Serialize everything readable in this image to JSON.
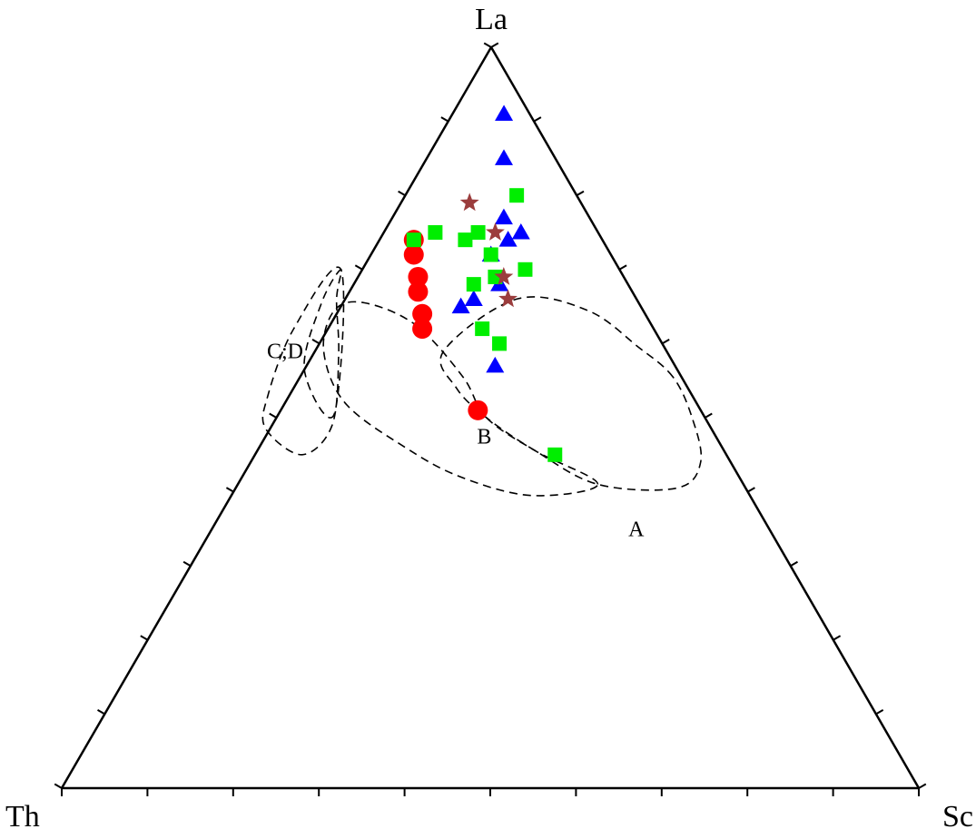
{
  "chart_data": {
    "type": "scatter",
    "subtype": "ternary",
    "vertices": {
      "top": "La",
      "left": "Th",
      "right": "Sc"
    },
    "tick_step": 0.1,
    "fields": [
      {
        "label": "A",
        "outline": [
          [
            0.555,
            0.01,
            0.435
          ],
          [
            0.595,
            0.03,
            0.375
          ],
          [
            0.645,
            0.065,
            0.29
          ],
          [
            0.66,
            0.14,
            0.2
          ],
          [
            0.59,
            0.26,
            0.15
          ],
          [
            0.54,
            0.27,
            0.19
          ],
          [
            0.5,
            0.255,
            0.245
          ],
          [
            0.455,
            0.22,
            0.325
          ],
          [
            0.41,
            0.17,
            0.42
          ],
          [
            0.405,
            0.08,
            0.515
          ],
          [
            0.44,
            0.035,
            0.525
          ],
          [
            0.5,
            0.015,
            0.485
          ]
        ]
      },
      {
        "label": "B",
        "outline": [
          [
            0.41,
            0.17,
            0.42
          ],
          [
            0.455,
            0.22,
            0.325
          ],
          [
            0.5,
            0.255,
            0.245
          ],
          [
            0.555,
            0.255,
            0.19
          ],
          [
            0.625,
            0.275,
            0.1
          ],
          [
            0.655,
            0.32,
            0.025
          ],
          [
            0.645,
            0.36,
            -0.005
          ],
          [
            0.59,
            0.4,
            0.01
          ],
          [
            0.52,
            0.41,
            0.07
          ],
          [
            0.46,
            0.37,
            0.17
          ],
          [
            0.42,
            0.325,
            0.255
          ],
          [
            0.395,
            0.255,
            0.35
          ]
        ]
      },
      {
        "label": "C;D",
        "outline": [
          [
            0.505,
            0.43,
            0.065
          ],
          [
            0.565,
            0.435,
            0.0
          ],
          [
            0.655,
            0.37,
            -0.025
          ],
          [
            0.7,
            0.325,
            -0.025
          ],
          [
            0.66,
            0.35,
            -0.01
          ],
          [
            0.585,
            0.385,
            0.03
          ],
          [
            0.49,
            0.44,
            0.07
          ],
          [
            0.45,
            0.495,
            0.055
          ],
          [
            0.485,
            0.52,
            -0.005
          ],
          [
            0.53,
            0.495,
            -0.025
          ],
          [
            0.62,
            0.42,
            -0.04
          ],
          [
            0.7,
            0.325,
            -0.025
          ]
        ]
      }
    ],
    "series": [
      {
        "marker": "circle",
        "color": "#ff0000",
        "points": [
          [
            0.74,
            0.22,
            0.04
          ],
          [
            0.72,
            0.23,
            0.05
          ],
          [
            0.69,
            0.24,
            0.07
          ],
          [
            0.67,
            0.25,
            0.08
          ],
          [
            0.64,
            0.26,
            0.1
          ],
          [
            0.62,
            0.27,
            0.11
          ],
          [
            0.51,
            0.26,
            0.23
          ]
        ]
      },
      {
        "marker": "triangle",
        "color": "#0000ff",
        "points": [
          [
            0.91,
            0.03,
            0.06
          ],
          [
            0.85,
            0.06,
            0.09
          ],
          [
            0.75,
            0.09,
            0.16
          ],
          [
            0.77,
            0.1,
            0.13
          ],
          [
            0.74,
            0.11,
            0.15
          ],
          [
            0.72,
            0.14,
            0.14
          ],
          [
            0.68,
            0.15,
            0.17
          ],
          [
            0.66,
            0.19,
            0.15
          ],
          [
            0.65,
            0.21,
            0.14
          ],
          [
            0.57,
            0.21,
            0.22
          ]
        ]
      },
      {
        "marker": "square",
        "color": "#00ee00",
        "points": [
          [
            0.8,
            0.07,
            0.13
          ],
          [
            0.75,
            0.14,
            0.11
          ],
          [
            0.74,
            0.16,
            0.1
          ],
          [
            0.75,
            0.19,
            0.06
          ],
          [
            0.74,
            0.22,
            0.04
          ],
          [
            0.72,
            0.14,
            0.14
          ],
          [
            0.7,
            0.11,
            0.19
          ],
          [
            0.69,
            0.15,
            0.16
          ],
          [
            0.68,
            0.18,
            0.14
          ],
          [
            0.6,
            0.19,
            0.21
          ],
          [
            0.62,
            0.2,
            0.18
          ],
          [
            0.45,
            0.2,
            0.35
          ]
        ]
      },
      {
        "marker": "star",
        "color": "#9b3d3d",
        "points": [
          [
            0.79,
            0.13,
            0.08
          ],
          [
            0.75,
            0.12,
            0.13
          ],
          [
            0.69,
            0.14,
            0.17
          ],
          [
            0.66,
            0.15,
            0.19
          ]
        ]
      }
    ]
  }
}
